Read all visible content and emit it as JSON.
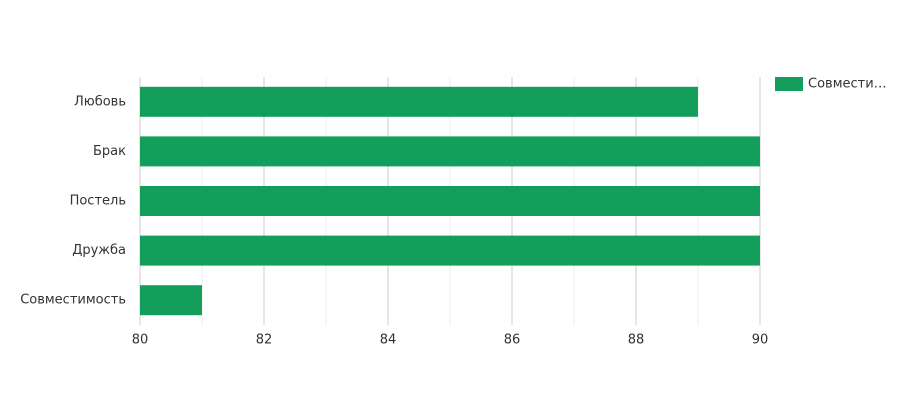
{
  "chart_data": {
    "type": "bar",
    "orientation": "horizontal",
    "categories": [
      "Любовь",
      "Брак",
      "Постель",
      "Дружба",
      "Совместимость"
    ],
    "series": [
      {
        "name": "Совмести…",
        "color": "#139f5b",
        "values": [
          89,
          90,
          90,
          90,
          81
        ]
      }
    ],
    "xlim": [
      80,
      90
    ],
    "xticks": [
      80,
      82,
      84,
      86,
      88,
      90
    ],
    "xminorticks": [
      81,
      83,
      85,
      87,
      89
    ],
    "grid": true,
    "legend": "top-right"
  }
}
